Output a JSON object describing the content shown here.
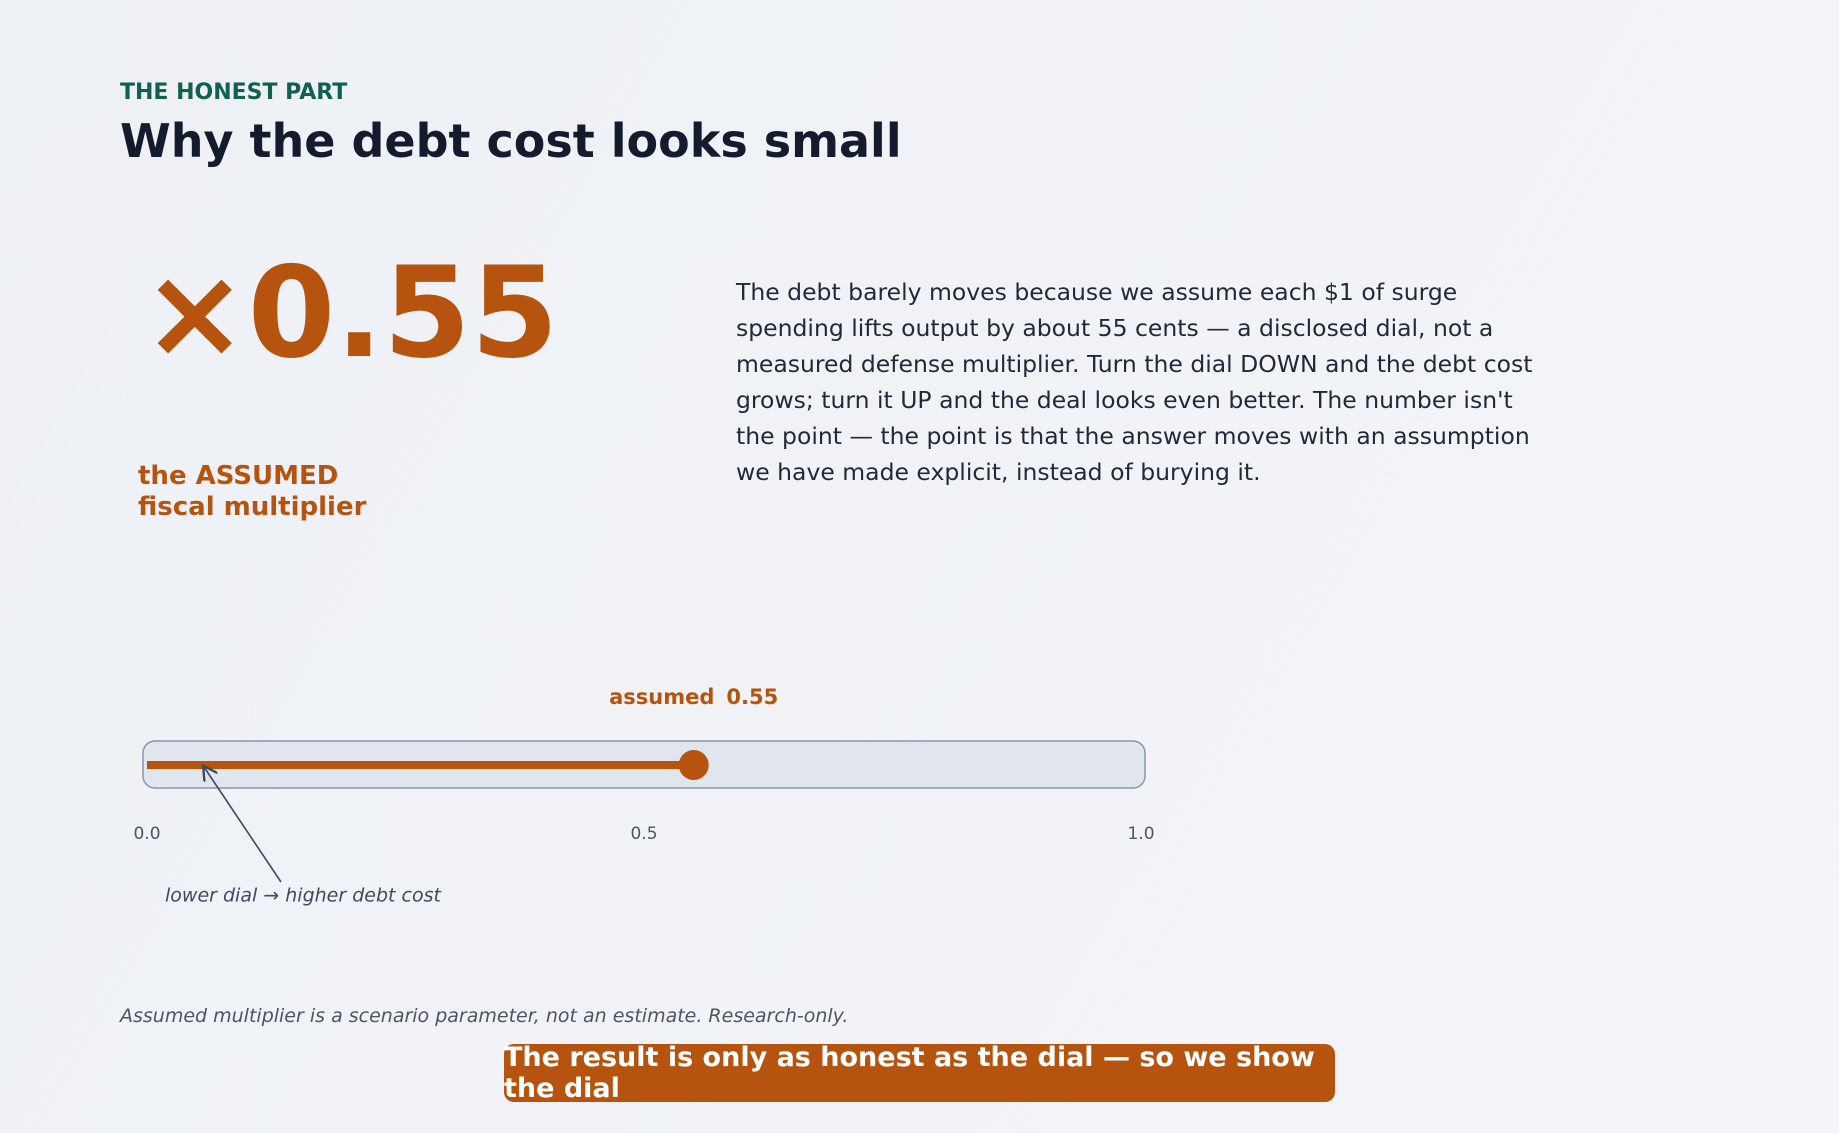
{
  "eyebrow": "THE HONEST PART",
  "title": "Why the debt cost looks small",
  "big_value": "×0.55",
  "big_value_caption": [
    "the ASSUMED",
    "fiscal multiplier"
  ],
  "body": "The debt barely moves because we assume each $1 of surge spending lifts output by about 55 cents — a disclosed dial, not a measured defense multiplier. Turn the dial DOWN and the debt cost grows; turn it UP and the deal looks even better. The number isn't the point — the point is that the answer moves with an assumption we have made explicit, instead of burying it.",
  "slider": {
    "label": "assumed",
    "value": 0.55,
    "value_label": "0.55",
    "xlim": [
      0,
      1
    ],
    "xticks": [
      {
        "value": 0,
        "label": "0.0"
      },
      {
        "value": 0.5,
        "label": "0.5"
      },
      {
        "value": 1,
        "label": "1.0"
      }
    ],
    "color": "#b5530f",
    "annotation": "lower dial → higher debt cost"
  },
  "footnote": "Assumed multiplier is a scenario parameter, not an estimate.  Research-only.",
  "banner": "The result is only as honest as the dial — so we show the dial"
}
